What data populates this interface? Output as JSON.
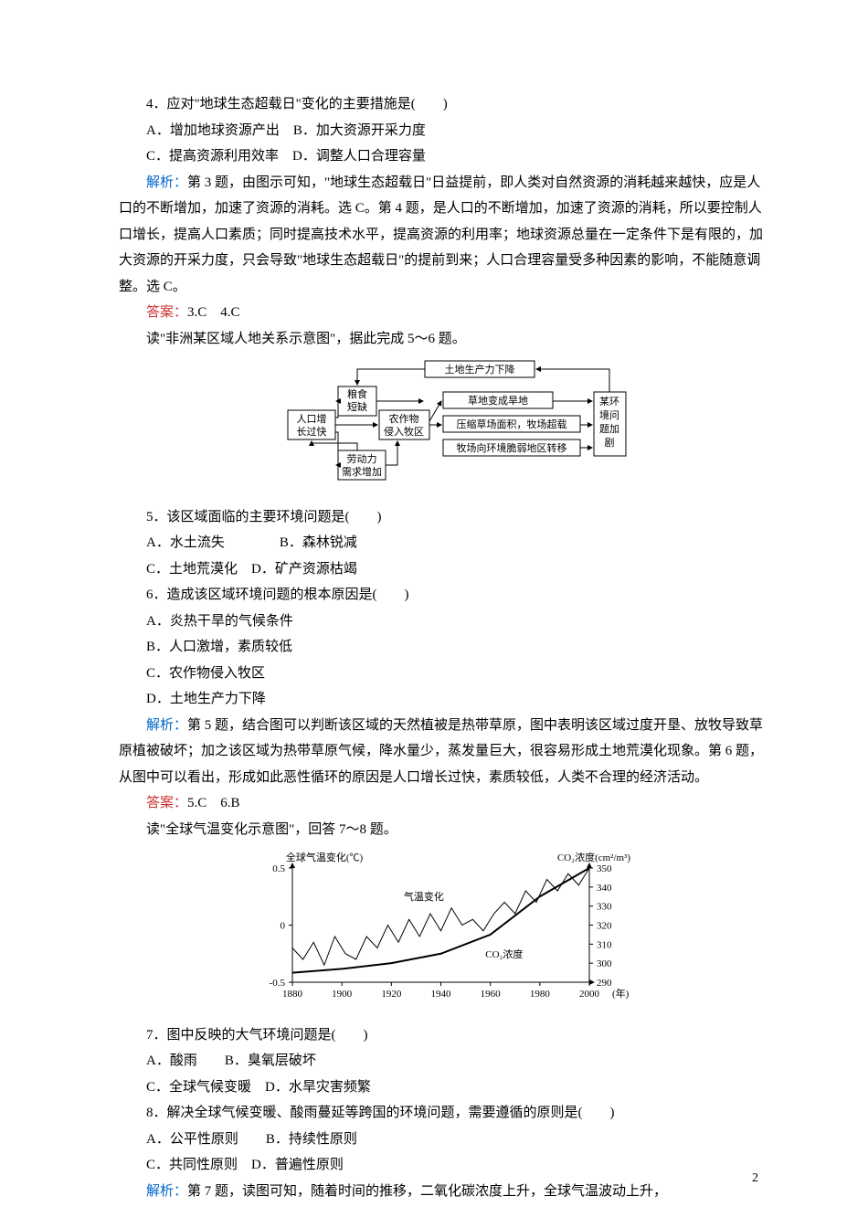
{
  "q4": {
    "stem": "4．应对\"地球生态超载日\"变化的主要措施是(　　)",
    "A": "A．增加地球资源产出",
    "B": "B．加大资源开采力度",
    "C": "C．提高资源利用效率",
    "D": "D．调整人口合理容量"
  },
  "analysis34_label": "解析：",
  "analysis34": "第 3 题，由图示可知，\"地球生态超载日\"日益提前，即人类对自然资源的消耗越来越快，应是人口的不断增加，加速了资源的消耗。选 C。第 4 题，是人口的不断增加，加速了资源的消耗，所以要控制人口增长，提高人口素质；同时提高技术水平，提高资源的利用率；地球资源总量在一定条件下是有限的，加大资源的开采力度，只会导致\"地球生态超载日\"的提前到来；人口合理容量受多种因素的影响，不能随意调整。选 C。",
  "answer34_label": "答案：",
  "answer34": "3.C　4.C",
  "intro56": "读\"非洲某区域人地关系示意图\"，据此完成 5～6 题。",
  "diagram1": {
    "nodes": {
      "top": "土地生产力下降",
      "grain": "粮食\n短缺",
      "pop": "人口增\n长过快",
      "crop": "农作物\n侵入牧区",
      "grass": "草地变成旱地",
      "compress": "压缩草场面积，牧场超载",
      "move": "牧场向环境脆弱地区转移",
      "env": "某环\n境问\n题加\n剧",
      "labor": "劳动力\n需求增加"
    }
  },
  "q5": {
    "stem": "5．该区域面临的主要环境问题是(　　)",
    "A": "A．水土流失",
    "B": "B．森林锐减",
    "C": "C．土地荒漠化",
    "D": "D．矿产资源枯竭"
  },
  "q6": {
    "stem": "6．造成该区域环境问题的根本原因是(　　)",
    "A": "A．炎热干旱的气候条件",
    "B": "B．人口激增，素质较低",
    "C": "C．农作物侵入牧区",
    "D": "D．土地生产力下降"
  },
  "analysis56_label": "解析：",
  "analysis56": "第 5 题，结合图可以判断该区域的天然植被是热带草原，图中表明该区域过度开垦、放牧导致草原植被破坏；加之该区域为热带草原气候，降水量少，蒸发量巨大，很容易形成土地荒漠化现象。第 6 题，从图中可以看出，形成如此恶性循环的原因是人口增长过快，素质较低，人类不合理的经济活动。",
  "answer56_label": "答案：",
  "answer56": "5.C　6.B",
  "intro78": "读\"全球气温变化示意图\"，回答 7～8 题。",
  "chart": {
    "type": "line",
    "title_left": "全球气温变化(℃)",
    "title_right": "CO₂浓度(cm²/m³)",
    "x_range": [
      1880,
      2000
    ],
    "x_ticks": [
      1880,
      1900,
      1920,
      1940,
      1960,
      1980,
      2000
    ],
    "x_label_suffix": "(年)",
    "y_left_ticks": [
      -0.5,
      0,
      0.5
    ],
    "y_right_ticks": [
      290,
      300,
      310,
      320,
      330,
      340,
      350
    ],
    "label_temp": "气温变化",
    "label_co2": "CO₂浓度",
    "colors": {
      "axis": "#000000",
      "temp_line": "#000000",
      "co2_line": "#000000",
      "background": "#ffffff"
    },
    "font_size": 11
  },
  "q7": {
    "stem": "7．图中反映的大气环境问题是(　　)",
    "A": "A．酸雨",
    "B": "B．臭氧层破坏",
    "C": "C．全球气候变暖",
    "D": "D．水旱灾害频繁"
  },
  "q8": {
    "stem": "8．解决全球气候变暖、酸雨蔓延等跨国的环境问题，需要遵循的原则是(　　)",
    "A": "A．公平性原则",
    "B": "B．持续性原则",
    "C": "C．共同性原则",
    "D": "D．普遍性原则"
  },
  "analysis78_label": "解析：",
  "analysis78": "第 7 题，读图可知，随着时间的推移，二氧化碳浓度上升，全球气温波动上升，",
  "page": "2"
}
